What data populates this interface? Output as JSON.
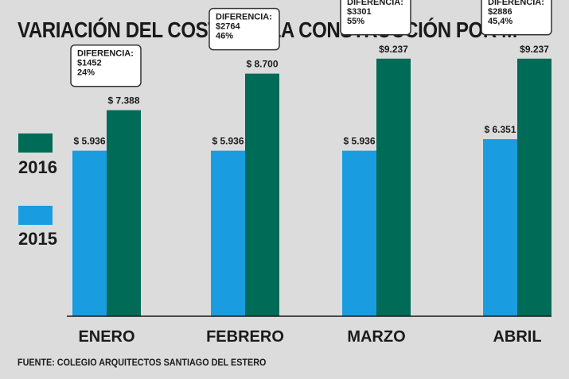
{
  "title": "VARIACIÓN DEL COSTO DE LA CONSTRUCCIÓN POR M",
  "title_superscript": "2",
  "source": "FUENTE: COLEGIO ARQUITECTOS SANTIAGO DEL ESTERO",
  "chart_data": {
    "type": "bar",
    "categories": [
      "ENERO",
      "FEBRERO",
      "MARZO",
      "ABRIL"
    ],
    "series": [
      {
        "name": "2015",
        "color": "#1a9de0",
        "values": [
          5936,
          5936,
          5936,
          6351
        ],
        "labels": [
          "$ 5.936",
          "$ 5.936",
          "$ 5.936",
          "$ 6.351"
        ]
      },
      {
        "name": "2016",
        "color": "#006b57",
        "values": [
          7388,
          8700,
          9237,
          9237
        ],
        "labels": [
          "$ 7.388",
          "$ 8.700",
          "$9.237",
          "$9.237"
        ]
      }
    ],
    "annotations": [
      {
        "category": "ENERO",
        "lines": [
          "DIFERENCIA:",
          "$1452",
          "24%"
        ]
      },
      {
        "category": "FEBRERO",
        "lines": [
          "DIFERENCIA:",
          "$2764",
          "46%"
        ]
      },
      {
        "category": "MARZO",
        "lines": [
          "DIFERENCIA:",
          "$3301",
          "55%"
        ]
      },
      {
        "category": "ABRIL",
        "lines": [
          "DIFERENCIA:",
          "$2886",
          "45,4%"
        ]
      }
    ],
    "ylim": [
      0,
      10200
    ],
    "legend_position": "left",
    "grid": false
  }
}
